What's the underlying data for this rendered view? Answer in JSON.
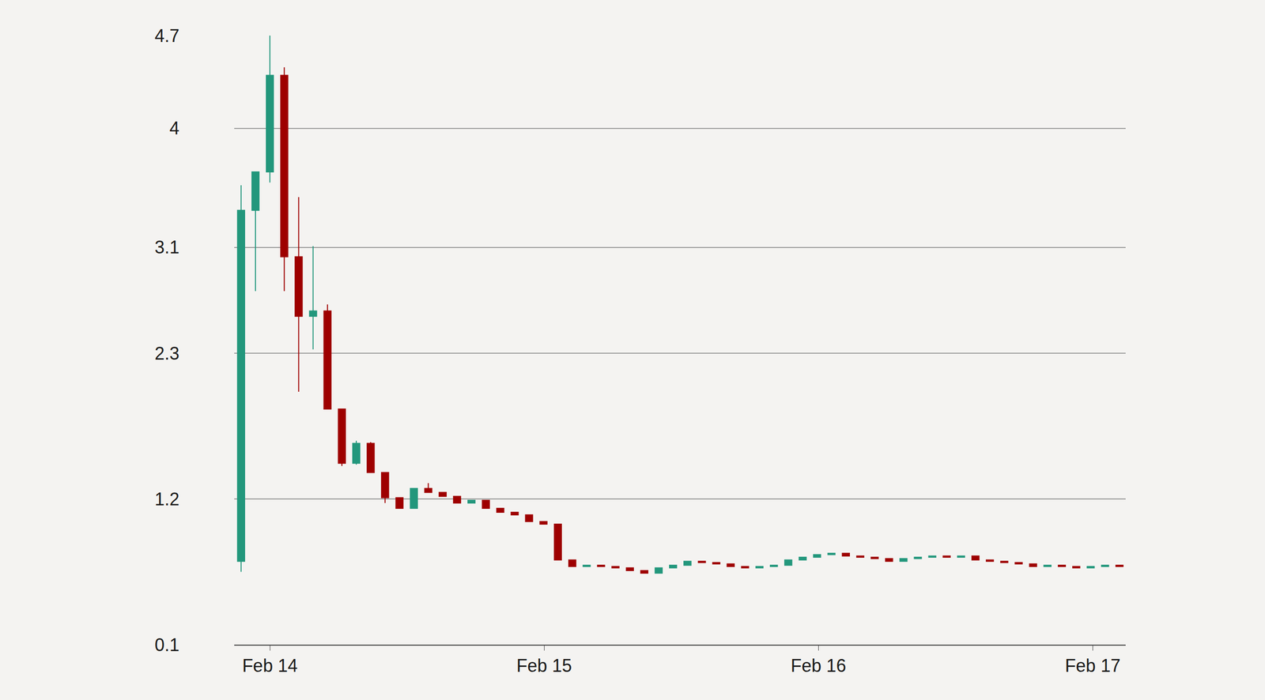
{
  "chart_data": {
    "type": "candlestick",
    "x": [
      -0.105,
      -0.0525,
      0,
      0.0525,
      0.105,
      0.1575,
      0.21,
      0.2625,
      0.315,
      0.3675,
      0.42,
      0.4725,
      0.525,
      0.5775,
      0.63,
      0.6825,
      0.735,
      0.7875,
      0.84,
      0.8925,
      0.945,
      0.9975,
      1.05,
      1.1025,
      1.155,
      1.2075,
      1.26,
      1.3125,
      1.365,
      1.4175,
      1.47,
      1.5225,
      1.575,
      1.6275,
      1.68,
      1.7325,
      1.785,
      1.8375,
      1.89,
      1.9425,
      1.995,
      2.0475,
      2.1,
      2.1525,
      2.205,
      2.2575,
      2.31,
      2.3625,
      2.415,
      2.4675,
      2.52,
      2.5725,
      2.625,
      2.6775,
      2.73,
      2.7825,
      2.835,
      2.8875,
      2.94,
      2.9925,
      3.045,
      3.0975
    ],
    "open": [
      0.73,
      3.38,
      3.67,
      4.4,
      3.03,
      2.58,
      2.62,
      1.88,
      1.47,
      1.62,
      1.4,
      1.21,
      1.13,
      1.28,
      1.25,
      1.22,
      1.17,
      1.19,
      1.13,
      1.1,
      1.08,
      1.03,
      1.01,
      0.74,
      0.69,
      0.7,
      0.69,
      0.68,
      0.66,
      0.64,
      0.68,
      0.7,
      0.73,
      0.72,
      0.71,
      0.69,
      0.68,
      0.69,
      0.7,
      0.74,
      0.76,
      0.78,
      0.79,
      0.77,
      0.76,
      0.75,
      0.73,
      0.75,
      0.76,
      0.77,
      0.76,
      0.77,
      0.74,
      0.73,
      0.72,
      0.71,
      0.69,
      0.7,
      0.69,
      0.68,
      0.69,
      0.7
    ],
    "high": [
      3.57,
      3.67,
      4.7,
      4.46,
      3.48,
      3.11,
      2.67,
      1.88,
      1.64,
      1.63,
      1.4,
      1.21,
      1.28,
      1.32,
      1.25,
      1.22,
      1.19,
      1.19,
      1.13,
      1.1,
      1.08,
      1.03,
      1.01,
      0.74,
      0.7,
      0.7,
      0.69,
      0.68,
      0.66,
      0.68,
      0.7,
      0.73,
      0.73,
      0.72,
      0.71,
      0.69,
      0.69,
      0.7,
      0.74,
      0.76,
      0.78,
      0.79,
      0.79,
      0.77,
      0.76,
      0.75,
      0.75,
      0.76,
      0.77,
      0.77,
      0.77,
      0.77,
      0.74,
      0.73,
      0.72,
      0.71,
      0.7,
      0.7,
      0.69,
      0.69,
      0.7,
      0.7
    ],
    "low": [
      0.65,
      2.77,
      3.59,
      2.77,
      2.01,
      2.33,
      1.88,
      1.45,
      1.46,
      1.4,
      1.17,
      1.13,
      1.13,
      1.25,
      1.22,
      1.17,
      1.17,
      1.13,
      1.1,
      1.08,
      1.03,
      1.01,
      0.74,
      0.69,
      0.69,
      0.69,
      0.68,
      0.66,
      0.64,
      0.64,
      0.68,
      0.7,
      0.72,
      0.71,
      0.69,
      0.68,
      0.68,
      0.69,
      0.7,
      0.74,
      0.76,
      0.78,
      0.77,
      0.76,
      0.75,
      0.73,
      0.73,
      0.75,
      0.76,
      0.76,
      0.76,
      0.74,
      0.73,
      0.72,
      0.71,
      0.69,
      0.69,
      0.69,
      0.68,
      0.68,
      0.69,
      0.69
    ],
    "close": [
      3.38,
      3.67,
      4.4,
      3.03,
      2.58,
      2.62,
      1.88,
      1.47,
      1.62,
      1.4,
      1.21,
      1.13,
      1.28,
      1.25,
      1.22,
      1.17,
      1.19,
      1.13,
      1.1,
      1.08,
      1.03,
      1.01,
      0.74,
      0.69,
      0.7,
      0.69,
      0.68,
      0.66,
      0.64,
      0.68,
      0.7,
      0.73,
      0.72,
      0.71,
      0.69,
      0.68,
      0.69,
      0.7,
      0.74,
      0.76,
      0.78,
      0.79,
      0.77,
      0.76,
      0.75,
      0.73,
      0.75,
      0.76,
      0.77,
      0.76,
      0.77,
      0.74,
      0.73,
      0.72,
      0.71,
      0.69,
      0.7,
      0.69,
      0.68,
      0.69,
      0.7,
      0.69
    ],
    "colors": {
      "increasing": "#23977c",
      "decreasing": "#9e0000"
    },
    "xlim": [
      -0.13,
      3.12
    ],
    "xticks": [
      {
        "value": 0,
        "label": "Feb 14"
      },
      {
        "value": 1,
        "label": "Feb 15"
      },
      {
        "value": 2,
        "label": "Feb 16"
      },
      {
        "value": 3,
        "label": "Feb 17"
      }
    ],
    "ylim": [
      0.1,
      4.7
    ],
    "yticks": [
      0.1,
      1.2,
      2.3,
      3.1,
      4.0,
      4.7
    ],
    "grid": true
  }
}
